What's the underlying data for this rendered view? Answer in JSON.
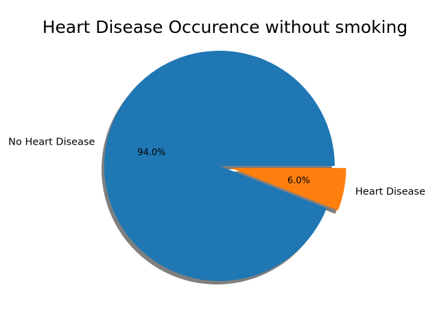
{
  "chart_data": {
    "type": "pie",
    "title": "Heart Disease Occurence without smoking",
    "slices": [
      {
        "label": "No Heart Disease",
        "value": 94.0,
        "pct_label": "94.0%",
        "color": "#1f77b4",
        "explode": 0.0
      },
      {
        "label": "Heart Disease",
        "value": 6.0,
        "pct_label": "6.0%",
        "color": "#ff7f0e",
        "explode": 0.1
      }
    ],
    "shadow": true,
    "start_angle": 0,
    "legend": "none"
  }
}
